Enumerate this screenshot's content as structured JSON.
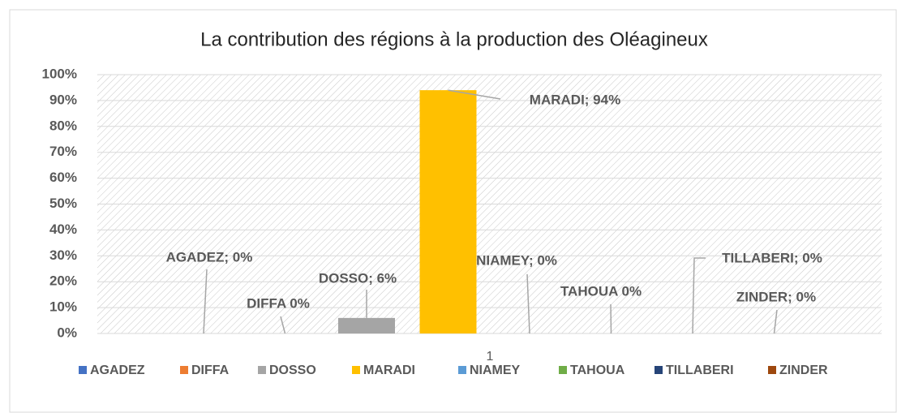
{
  "chart_data": {
    "type": "bar",
    "title": "La contribution des régions à la production des Oléagineux",
    "categories": [
      "1"
    ],
    "series": [
      {
        "name": "AGADEZ",
        "color": "#4472c4",
        "values": [
          0
        ],
        "value_labels": [
          "AGADEZ; 0%"
        ]
      },
      {
        "name": "DIFFA",
        "color": "#ed7d31",
        "values": [
          0
        ],
        "value_labels": [
          "DIFFA 0%"
        ]
      },
      {
        "name": "DOSSO",
        "color": "#a5a5a5",
        "values": [
          6
        ],
        "value_labels": [
          "DOSSO; 6%"
        ]
      },
      {
        "name": "MARADI",
        "color": "#ffc000",
        "values": [
          94
        ],
        "value_labels": [
          "MARADI; 94%"
        ]
      },
      {
        "name": "NIAMEY",
        "color": "#5b9bd5",
        "values": [
          0
        ],
        "value_labels": [
          "NIAMEY; 0%"
        ]
      },
      {
        "name": "TAHOUA",
        "color": "#70ad47",
        "values": [
          0
        ],
        "value_labels": [
          "TAHOUA 0%"
        ]
      },
      {
        "name": "TILLABERI",
        "color": "#264478",
        "values": [
          0
        ],
        "value_labels": [
          "TILLABERI; 0%"
        ]
      },
      {
        "name": "ZINDER",
        "color": "#9e480e",
        "values": [
          0
        ],
        "value_labels": [
          "ZINDER; 0%"
        ]
      }
    ],
    "ylim": [
      0,
      100
    ],
    "yticks": [
      {
        "value": 0,
        "label": "0%"
      },
      {
        "value": 10,
        "label": "10%"
      },
      {
        "value": 20,
        "label": "20%"
      },
      {
        "value": 30,
        "label": "30%"
      },
      {
        "value": 40,
        "label": "40%"
      },
      {
        "value": 50,
        "label": "50%"
      },
      {
        "value": 60,
        "label": "60%"
      },
      {
        "value": 70,
        "label": "70%"
      },
      {
        "value": 80,
        "label": "80%"
      },
      {
        "value": 90,
        "label": "90%"
      },
      {
        "value": 100,
        "label": "100%"
      }
    ],
    "grid": true,
    "legend": "bottom"
  }
}
